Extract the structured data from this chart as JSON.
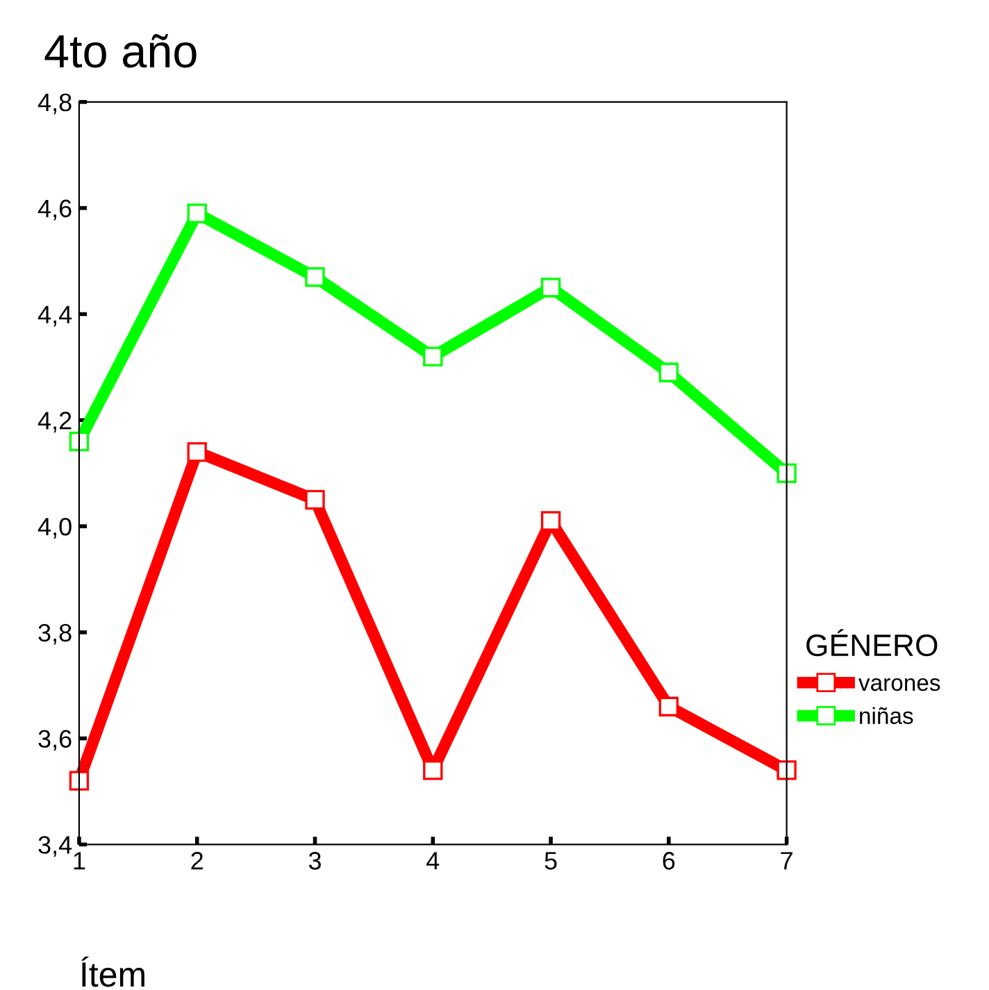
{
  "chart_data": {
    "type": "line",
    "title": "4to año",
    "xlabel": "Ítem",
    "legend_title": "GÉNERO",
    "legend": "right",
    "marker": "square",
    "line_style": "solid",
    "grid": false,
    "x": [
      1,
      2,
      3,
      4,
      5,
      6,
      7
    ],
    "xlim": [
      1,
      7
    ],
    "xticks": [
      1,
      2,
      3,
      4,
      5,
      6,
      7
    ],
    "ylim": [
      3.4,
      4.8
    ],
    "yticks": [
      {
        "value": 3.4,
        "label": "3,4"
      },
      {
        "value": 3.6,
        "label": "3,6"
      },
      {
        "value": 3.8,
        "label": "3,8"
      },
      {
        "value": 4.0,
        "label": "4,0"
      },
      {
        "value": 4.2,
        "label": "4,2"
      },
      {
        "value": 4.4,
        "label": "4,4"
      },
      {
        "value": 4.6,
        "label": "4,6"
      },
      {
        "value": 4.8,
        "label": "4,8"
      }
    ],
    "series": [
      {
        "name": "varones",
        "color": "#ff0000",
        "values": [
          3.52,
          4.14,
          4.05,
          3.54,
          4.01,
          3.66,
          3.54
        ]
      },
      {
        "name": "niñas",
        "color": "#00ff00",
        "values": [
          4.16,
          4.59,
          4.47,
          4.32,
          4.45,
          4.29,
          4.1
        ]
      }
    ]
  }
}
